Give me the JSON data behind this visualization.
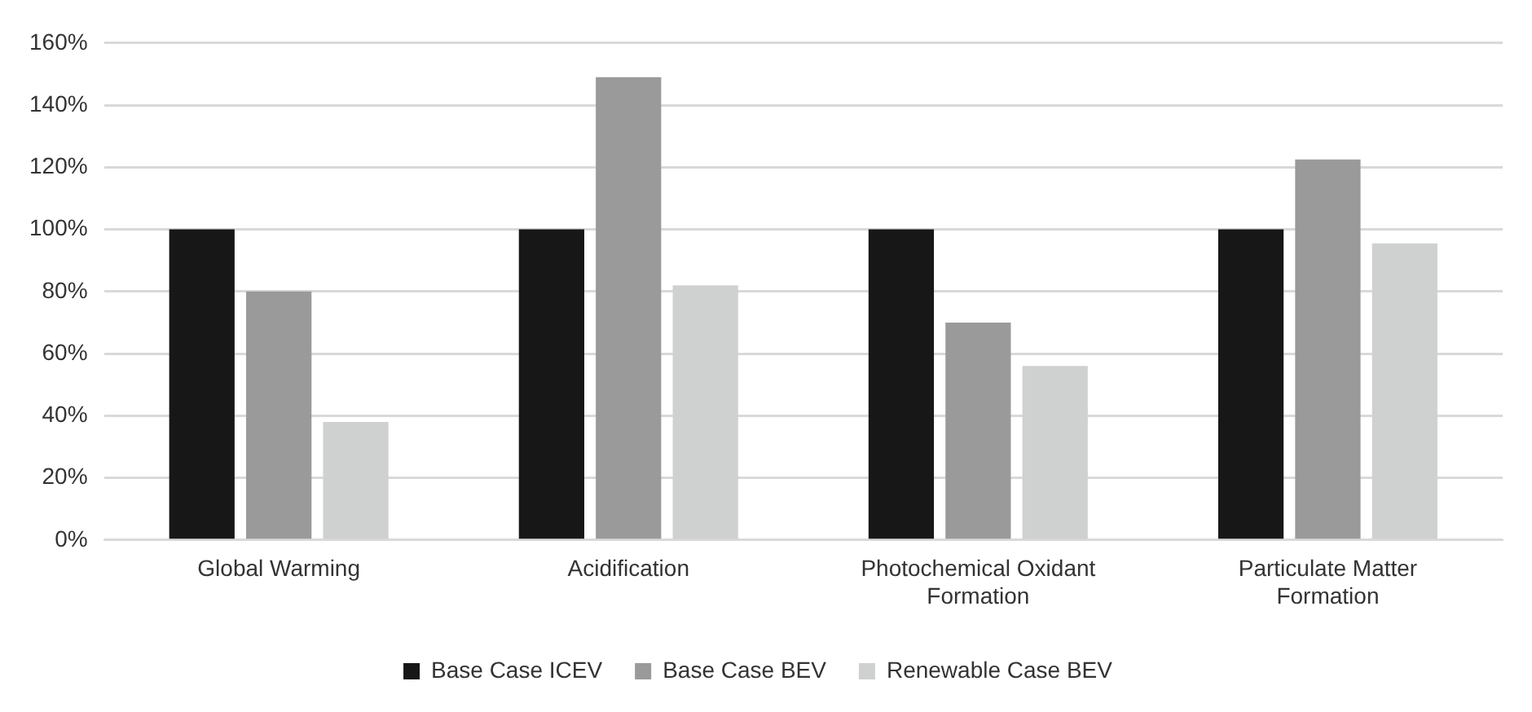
{
  "chart_data": {
    "type": "bar",
    "categories": [
      "Global Warming",
      "Acidification",
      "Photochemical Oxidant Formation",
      "Particulate Matter Formation"
    ],
    "series": [
      {
        "name": "Base Case ICEV",
        "color": "#171717",
        "values": [
          100,
          100,
          100,
          100
        ]
      },
      {
        "name": "Base Case BEV",
        "color": "#9a9a9a",
        "values": [
          80,
          149,
          70,
          122.5
        ]
      },
      {
        "name": "Renewable Case BEV",
        "color": "#cfd1d0",
        "values": [
          38,
          82,
          56,
          95.5
        ]
      }
    ],
    "ylim": [
      0,
      160
    ],
    "yticks": [
      {
        "value": 0,
        "label": "0%"
      },
      {
        "value": 20,
        "label": "20%"
      },
      {
        "value": 40,
        "label": "40%"
      },
      {
        "value": 60,
        "label": "60%"
      },
      {
        "value": 80,
        "label": "80%"
      },
      {
        "value": 100,
        "label": "100%"
      },
      {
        "value": 120,
        "label": "120%"
      },
      {
        "value": 140,
        "label": "140%"
      },
      {
        "value": 160,
        "label": "160%"
      }
    ],
    "grid": "y",
    "legend": "bottom"
  }
}
